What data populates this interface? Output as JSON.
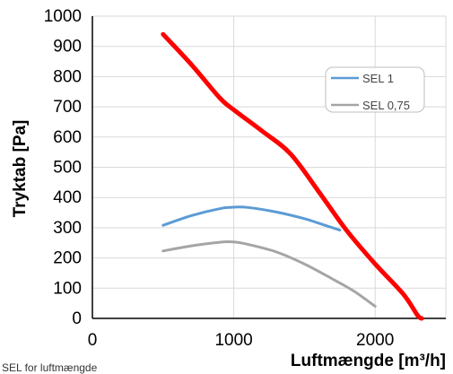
{
  "chart_data": {
    "type": "line",
    "title": "",
    "xlabel": "Luftmængde  [m³/h]",
    "ylabel": "Tryktab [Pa]",
    "xlim": [
      0,
      2500
    ],
    "ylim": [
      0,
      1000
    ],
    "x_ticks": [
      {
        "value": 0,
        "label": "0"
      },
      {
        "value": 1000,
        "label": "1000"
      },
      {
        "value": 2000,
        "label": "2000"
      }
    ],
    "y_ticks": [
      {
        "value": 0,
        "label": "0"
      },
      {
        "value": 100,
        "label": "100"
      },
      {
        "value": 200,
        "label": "200"
      },
      {
        "value": 300,
        "label": "300"
      },
      {
        "value": 400,
        "label": "400"
      },
      {
        "value": 500,
        "label": "500"
      },
      {
        "value": 600,
        "label": "600"
      },
      {
        "value": 700,
        "label": "700"
      },
      {
        "value": 800,
        "label": "800"
      },
      {
        "value": 900,
        "label": "900"
      },
      {
        "value": 1000,
        "label": "1000"
      }
    ],
    "grid": true,
    "legend": "top-right",
    "series": [
      {
        "name": "",
        "color": "#ff0000",
        "points": [
          [
            500,
            940
          ],
          [
            700,
            840
          ],
          [
            900,
            730
          ],
          [
            1000,
            690
          ],
          [
            1200,
            620
          ],
          [
            1400,
            545
          ],
          [
            1600,
            420
          ],
          [
            1800,
            290
          ],
          [
            2000,
            180
          ],
          [
            2200,
            80
          ],
          [
            2300,
            10
          ],
          [
            2330,
            0
          ]
        ]
      },
      {
        "name": "SEL 1",
        "color": "#5b9bd5",
        "points": [
          [
            500,
            308
          ],
          [
            700,
            340
          ],
          [
            900,
            363
          ],
          [
            1000,
            368
          ],
          [
            1100,
            367
          ],
          [
            1300,
            352
          ],
          [
            1500,
            330
          ],
          [
            1600,
            315
          ],
          [
            1750,
            292
          ]
        ]
      },
      {
        "name": "SEL 0,75",
        "color": "#a5a5a5",
        "points": [
          [
            500,
            223
          ],
          [
            700,
            240
          ],
          [
            900,
            252
          ],
          [
            1000,
            253
          ],
          [
            1100,
            245
          ],
          [
            1300,
            220
          ],
          [
            1500,
            180
          ],
          [
            1700,
            130
          ],
          [
            1850,
            90
          ],
          [
            2000,
            40
          ]
        ]
      }
    ]
  },
  "caption": "SEL for luftmængde"
}
